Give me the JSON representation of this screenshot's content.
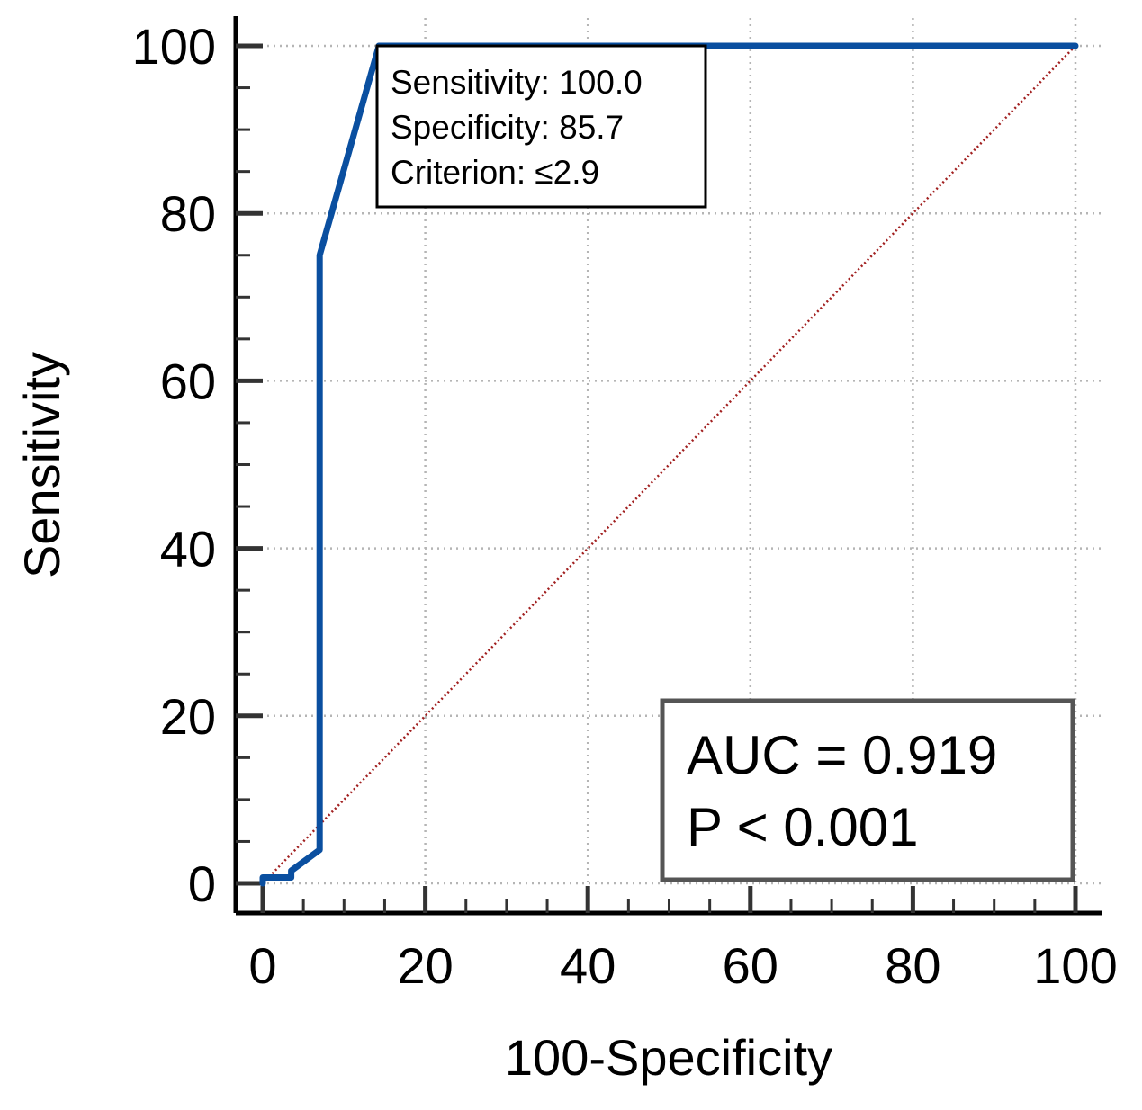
{
  "chart_data": {
    "type": "line",
    "title": "",
    "xlabel": "100-Specificity",
    "ylabel": "Sensitivity",
    "xlim": [
      0,
      100
    ],
    "ylim": [
      0,
      100
    ],
    "x_ticks": [
      0,
      20,
      40,
      60,
      80,
      100
    ],
    "y_ticks": [
      0,
      20,
      40,
      60,
      80,
      100
    ],
    "grid": true,
    "series": [
      {
        "color": "#0a4fa0",
        "x": [
          0,
          0,
          3.5,
          3.5,
          7,
          7,
          14.3,
          14.3,
          100
        ],
        "y": [
          0,
          0.7,
          0.7,
          1.5,
          4,
          75,
          100,
          100,
          100
        ]
      },
      {
        "color": "#a11f1f",
        "x": [
          0,
          100
        ],
        "y": [
          0,
          100
        ]
      }
    ],
    "annotations": {
      "criterion_box": {
        "lines": [
          "Sensitivity: 100.0",
          "Specificity: 85.7",
          "Criterion: ≤2.9"
        ]
      },
      "stats_box": {
        "lines": [
          "AUC = 0.919",
          "P < 0.001"
        ]
      }
    }
  }
}
